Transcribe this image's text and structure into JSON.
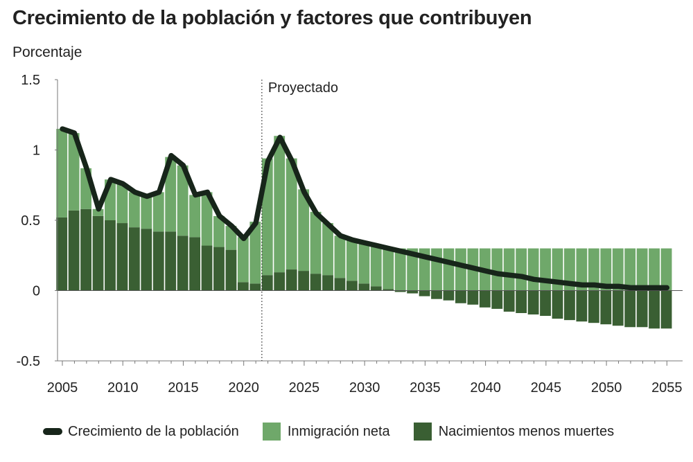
{
  "title": "Crecimiento de la población y factores que contribuyen",
  "colors": {
    "immigration": "#6fa86a",
    "natural": "#3a5f33",
    "population_line": "#17251a"
  },
  "chart_data": {
    "type": "bar",
    "title": "Crecimiento de la población y factores que contribuyen",
    "ylabel": "Porcentaje",
    "xlabel": "",
    "ylim": [
      -0.5,
      1.5
    ],
    "yticks": [
      -0.5,
      0,
      0.5,
      1,
      1.5
    ],
    "ytick_labels": [
      "-0.5",
      "0",
      "0.5",
      "1",
      "1.5"
    ],
    "xticks": [
      2005,
      2010,
      2015,
      2020,
      2025,
      2030,
      2035,
      2040,
      2045,
      2050,
      2055
    ],
    "annotation": {
      "label": "Proyectado",
      "x": 2021.5
    },
    "stacked": true,
    "x": [
      2005,
      2006,
      2007,
      2008,
      2009,
      2010,
      2011,
      2012,
      2013,
      2014,
      2015,
      2016,
      2017,
      2018,
      2019,
      2020,
      2021,
      2022,
      2023,
      2024,
      2025,
      2026,
      2027,
      2028,
      2029,
      2030,
      2031,
      2032,
      2033,
      2034,
      2035,
      2036,
      2037,
      2038,
      2039,
      2040,
      2041,
      2042,
      2043,
      2044,
      2045,
      2046,
      2047,
      2048,
      2049,
      2050,
      2051,
      2052,
      2053,
      2054,
      2055
    ],
    "series": [
      {
        "name": "Nacimientos menos muertes",
        "kind": "bar",
        "values": [
          0.52,
          0.57,
          0.58,
          0.53,
          0.5,
          0.48,
          0.45,
          0.44,
          0.42,
          0.42,
          0.39,
          0.38,
          0.32,
          0.31,
          0.29,
          0.06,
          0.05,
          0.11,
          0.13,
          0.15,
          0.14,
          0.12,
          0.11,
          0.09,
          0.07,
          0.05,
          0.03,
          0.01,
          -0.01,
          -0.02,
          -0.04,
          -0.06,
          -0.07,
          -0.09,
          -0.1,
          -0.12,
          -0.13,
          -0.15,
          -0.16,
          -0.17,
          -0.18,
          -0.2,
          -0.21,
          -0.22,
          -0.23,
          -0.24,
          -0.25,
          -0.26,
          -0.26,
          -0.27,
          -0.27
        ]
      },
      {
        "name": "Inmigración neta",
        "kind": "bar",
        "values": [
          0.63,
          0.55,
          0.29,
          0.05,
          0.29,
          0.28,
          0.25,
          0.23,
          0.28,
          0.53,
          0.5,
          0.3,
          0.38,
          0.22,
          0.17,
          0.32,
          0.44,
          0.83,
          0.97,
          0.79,
          0.58,
          0.44,
          0.37,
          0.3,
          0.3,
          0.3,
          0.3,
          0.3,
          0.3,
          0.3,
          0.3,
          0.3,
          0.3,
          0.3,
          0.3,
          0.3,
          0.3,
          0.3,
          0.3,
          0.3,
          0.3,
          0.3,
          0.3,
          0.3,
          0.3,
          0.3,
          0.3,
          0.3,
          0.3,
          0.3,
          0.3
        ]
      },
      {
        "name": "Crecimiento de la población",
        "kind": "line",
        "values": [
          1.15,
          1.12,
          0.87,
          0.58,
          0.79,
          0.76,
          0.7,
          0.67,
          0.7,
          0.96,
          0.89,
          0.68,
          0.7,
          0.53,
          0.46,
          0.37,
          0.48,
          0.92,
          1.09,
          0.92,
          0.7,
          0.55,
          0.47,
          0.39,
          0.36,
          0.34,
          0.32,
          0.3,
          0.28,
          0.26,
          0.24,
          0.22,
          0.2,
          0.18,
          0.16,
          0.14,
          0.12,
          0.11,
          0.1,
          0.08,
          0.07,
          0.06,
          0.05,
          0.04,
          0.04,
          0.03,
          0.03,
          0.02,
          0.02,
          0.02,
          0.02
        ]
      }
    ],
    "legend": [
      "Crecimiento de la población",
      "Inmigración neta",
      "Nacimientos menos muertes"
    ],
    "legend_position": "bottom"
  }
}
